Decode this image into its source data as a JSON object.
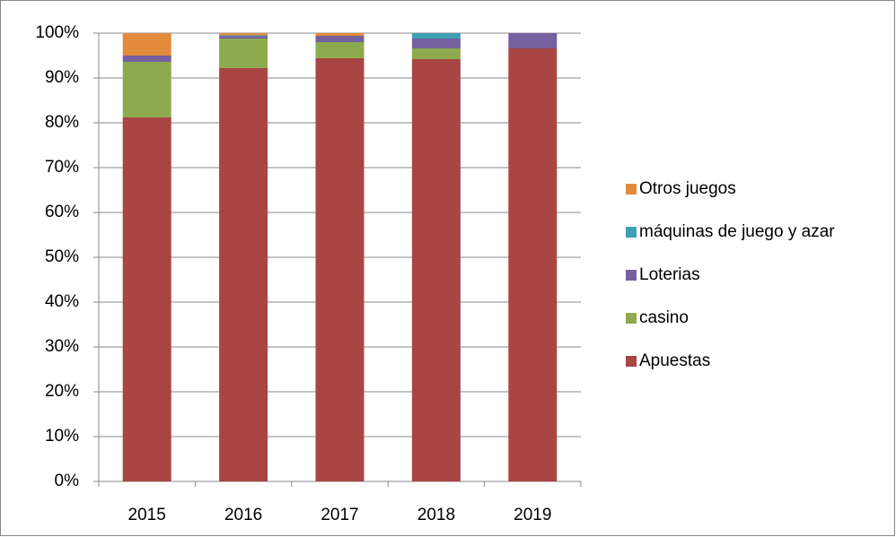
{
  "chart_data": {
    "type": "stacked_bar",
    "categories": [
      "2015",
      "2016",
      "2017",
      "2018",
      "2019"
    ],
    "series": [
      {
        "name": "Apuestas",
        "color": "#a94543",
        "values": [
          81.2,
          92.2,
          94.4,
          94.2,
          96.6
        ]
      },
      {
        "name": "casino",
        "color": "#8eaa4e",
        "values": [
          12.4,
          6.6,
          3.6,
          2.4,
          0
        ]
      },
      {
        "name": "Loterias",
        "color": "#7560a0",
        "values": [
          1.4,
          0.5,
          1.4,
          2.2,
          3.4
        ]
      },
      {
        "name": "máquinas de juego y azar",
        "color": "#3f9fb5",
        "values": [
          0,
          0.2,
          0,
          1.2,
          0
        ]
      },
      {
        "name": "Otros juegos",
        "color": "#e28b3c",
        "values": [
          5,
          0.5,
          0.6,
          0,
          0
        ]
      }
    ],
    "ylim": [
      0,
      100
    ],
    "yticks": [
      {
        "value": 0,
        "label": "0%"
      },
      {
        "value": 10,
        "label": "10%"
      },
      {
        "value": 20,
        "label": "20%"
      },
      {
        "value": 30,
        "label": "30%"
      },
      {
        "value": 40,
        "label": "40%"
      },
      {
        "value": 50,
        "label": "50%"
      },
      {
        "value": 60,
        "label": "60%"
      },
      {
        "value": 70,
        "label": "70%"
      },
      {
        "value": 80,
        "label": "80%"
      },
      {
        "value": 90,
        "label": "90%"
      },
      {
        "value": 100,
        "label": "100%"
      }
    ],
    "grid": true,
    "legend": "right"
  }
}
